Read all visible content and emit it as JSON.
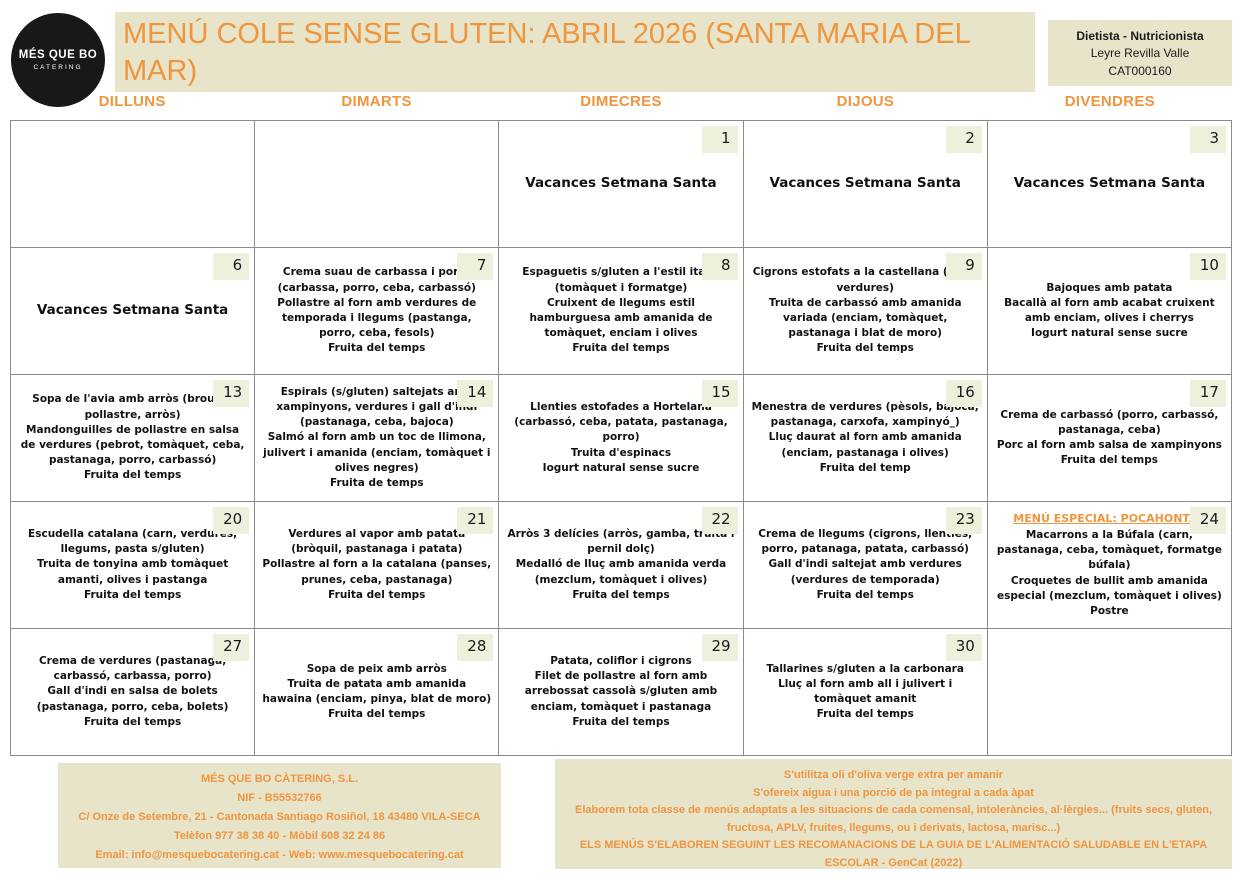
{
  "colors": {
    "accent_orange": "#ef953d",
    "beige_panel": "#e8e4ca",
    "date_badge": "#eef0dc",
    "grid_border": "#8a8a8a",
    "logo_black": "#181818"
  },
  "header": {
    "logo": {
      "line1": "MÉS QUE BO",
      "line2": "CATERING"
    },
    "title": "MENÚ COLE SENSE GLUTEN: ABRIL 2026 (SANTA MARIA DEL MAR)",
    "dietitian": {
      "role": "Dietista - Nutricionista",
      "name": "Leyre Revilla Valle",
      "id": "CAT000160"
    }
  },
  "weekdays": [
    "DILLUNS",
    "DIMARTS",
    "DIMECRES",
    "DIJOUS",
    "DIVENDRES"
  ],
  "calendar": {
    "rows": [
      {
        "cells": [
          {
            "date": "",
            "lines": []
          },
          {
            "date": "",
            "lines": []
          },
          {
            "date": "1",
            "vacation": "Vacances Setmana Santa"
          },
          {
            "date": "2",
            "vacation": "Vacances Setmana Santa"
          },
          {
            "date": "3",
            "vacation": "Vacances Setmana Santa"
          }
        ]
      },
      {
        "cells": [
          {
            "date": "6",
            "vacation": "Vacances Setmana Santa"
          },
          {
            "date": "7",
            "lines": [
              "Crema suau de carbassa i porro (carbassa, porro, ceba, carbassó)",
              "Pollastre al forn amb verdures de temporada i llegums (pastanga, porro, ceba, fesols)",
              "Fruita del temps"
            ]
          },
          {
            "date": "8",
            "lines": [
              "Espaguetis s/gluten a l'estil italià (tomàquet i formatge)",
              "Cruixent de llegums estil hamburguesa amb amanida de tomàquet, enciam i olives",
              "Fruita del temps"
            ]
          },
          {
            "date": "9",
            "lines": [
              "Cigrons estofats a la castellana (carn, verdures)",
              "Truita de carbassó amb amanida variada (enciam, tomàquet, pastanaga i blat de moro)",
              "Fruita del temps"
            ]
          },
          {
            "date": "10",
            "lines": [
              "Bajoques amb patata",
              "Bacallà al forn amb acabat cruixent amb enciam, olives i cherrys",
              "Iogurt natural sense sucre"
            ]
          }
        ]
      },
      {
        "cells": [
          {
            "date": "13",
            "lines": [
              "Sopa de l'avia amb arròs (brou de pollastre, arròs)",
              "Mandonguilles de pollastre en salsa de verdures (pebrot, tomàquet, ceba, pastanaga, porro, carbassó)",
              "Fruita del temps"
            ]
          },
          {
            "date": "14",
            "lines": [
              "Espirals (s/gluten) saltejats amb xampinyons, verdures i gall d'indi (pastanaga, ceba, bajoca)",
              "Salmó al forn amb un toc de llimona, julivert i amanida (enciam, tomàquet i olives negres)",
              "Fruita de temps"
            ]
          },
          {
            "date": "15",
            "lines": [
              "Llenties estofades a Hortelana (carbassó, ceba, patata, pastanaga, porro)",
              "Truita d'espinacs",
              "Iogurt natural sense sucre"
            ]
          },
          {
            "date": "16",
            "lines": [
              "Menestra de verdures (pèsols, bajoca, pastanaga, carxofa, xampinyó_)",
              "Lluç daurat al forn amb amanida (enciam, pastanaga i olives)",
              "Fruita del temp"
            ]
          },
          {
            "date": "17",
            "lines": [
              "Crema de carbassó (porro, carbassó, pastanaga, ceba)",
              "Porc al forn amb salsa de xampinyons",
              "Fruita del temps"
            ]
          }
        ]
      },
      {
        "cells": [
          {
            "date": "20",
            "lines": [
              "Escudella catalana (carn, verdures, llegums, pasta s/gluten)",
              "Truita de tonyina amb tomàquet amanti, olives i pastanga",
              "Fruita del temps"
            ]
          },
          {
            "date": "21",
            "lines": [
              "Verdures al vapor amb patata (bròquil, pastanaga i patata)",
              "Pollastre al forn a la catalana (panses, prunes, ceba, pastanaga)",
              "Fruita del temps"
            ]
          },
          {
            "date": "22",
            "lines": [
              "Arròs 3 delícies (arròs, gamba, truita i pernil dolç)",
              "Medalló de lluç amb amanida verda (mezclum, tomàquet i olives)",
              "Fruita del temps"
            ]
          },
          {
            "date": "23",
            "lines": [
              "Crema de llegums (cigrons, llenties, porro, patanaga, patata, carbassó)",
              "Gall d'indi saltejat amb verdures (verdures de temporada)",
              "Fruita del temps"
            ]
          },
          {
            "date": "24",
            "special_title": "MENÚ ESPECIAL: POCAHONTAS",
            "lines": [
              "Macarrons a la Búfala (carn, pastanaga, ceba, tomàquet, formatge búfala)",
              "Croquetes de bullit amb amanida especial (mezclum, tomàquet i olives)",
              "Postre"
            ]
          }
        ]
      },
      {
        "cells": [
          {
            "date": "27",
            "lines": [
              "Crema de verdures (pastanaga, carbassó, carbassa, porro)",
              "Gall d'indi en salsa de bolets (pastanaga, porro, ceba, bolets)",
              "Fruita del temps"
            ]
          },
          {
            "date": "28",
            "lines": [
              "Sopa de peix amb arròs",
              "Truita de patata amb amanida hawaina (enciam, pinya, blat de moro)",
              "Fruita del temps"
            ]
          },
          {
            "date": "29",
            "lines": [
              "Patata, coliflor i cigrons",
              "Filet de pollastre al forn amb arrebossat cassolà s/gluten amb enciam, tomàquet i pastanaga",
              "Fruita del temps"
            ]
          },
          {
            "date": "30",
            "lines": [
              "Tallarines s/gluten a la carbonara",
              "Lluç al forn amb all i julivert i tomàquet amanit",
              "Fruita del temps"
            ]
          },
          {
            "date": "",
            "lines": []
          }
        ]
      }
    ]
  },
  "footer": {
    "company_lines": [
      "MÉS QUE BO CÀTERING, S.L.",
      "NIF - B55532766",
      "C/ Onze de Setembre, 21 - Cantonada Santiago Rosiñol, 18 43480 VILA-SECA",
      "Telèfon 977 38 38 40 - Mòbil 608 32 24 86",
      "Email: info@mesquebocatering.cat - Web: www.mesquebocatering.cat"
    ],
    "notes_lines": [
      "S'utilitza oli d'oliva verge extra per amanir",
      "S'ofereix aigua i una porció de pa integral a cada àpat",
      "Elaborem tota classe de menús adaptats a les situacions de cada comensal, intoleràncies, al·lèrgies... (fruits secs, gluten, fructosa, APLV, fruites, llegums, ou i derivats, lactosa, marisc...)",
      "ELS MENÚS S'ELABOREN SEGUINT LES RECOMANACIONS DE LA GUIA DE L'ALIMENTACIÓ SALUDABLE EN L'ETAPA ESCOLAR - GenCat (2022)"
    ]
  }
}
